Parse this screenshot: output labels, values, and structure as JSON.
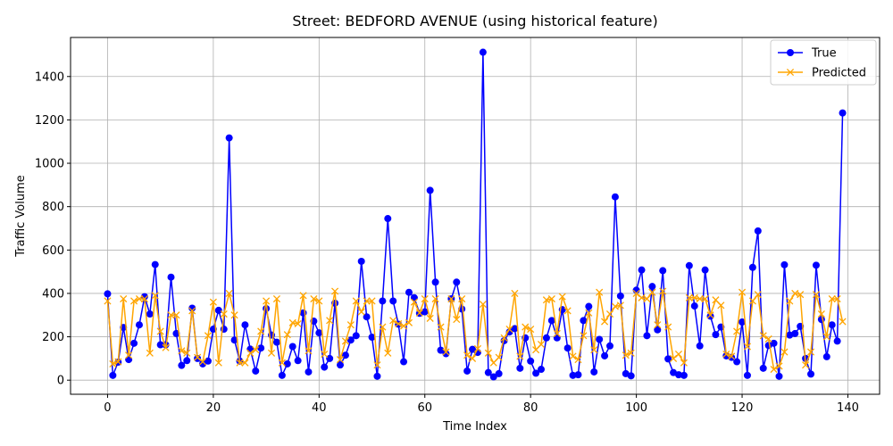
{
  "chart_data": {
    "type": "line",
    "title": "Street: BEDFORD AVENUE (using historical feature)",
    "xlabel": "Time Index",
    "ylabel": "Traffic Volume",
    "xlim": [
      -7,
      146
    ],
    "ylim": [
      -65,
      1580
    ],
    "xticks": [
      0,
      20,
      40,
      60,
      80,
      100,
      120,
      140
    ],
    "yticks": [
      0,
      200,
      400,
      600,
      800,
      1000,
      1200,
      1400
    ],
    "grid": true,
    "legend_position": "top-right",
    "series": [
      {
        "name": "True",
        "color": "#0000ff",
        "marker": "circle",
        "values": [
          398,
          22,
          83,
          243,
          95,
          170,
          255,
          385,
          305,
          533,
          163,
          163,
          475,
          215,
          68,
          90,
          332,
          100,
          75,
          88,
          235,
          322,
          235,
          1117,
          185,
          88,
          255,
          143,
          42,
          148,
          330,
          208,
          175,
          22,
          75,
          155,
          90,
          310,
          38,
          272,
          218,
          60,
          100,
          355,
          70,
          115,
          185,
          205,
          548,
          292,
          198,
          18,
          365,
          745,
          365,
          258,
          85,
          405,
          380,
          308,
          315,
          875,
          452,
          138,
          122,
          375,
          452,
          328,
          42,
          142,
          128,
          1512,
          35,
          15,
          30,
          182,
          222,
          238,
          55,
          195,
          88,
          32,
          50,
          195,
          275,
          195,
          325,
          148,
          22,
          25,
          275,
          340,
          38,
          188,
          112,
          158,
          845,
          388,
          30,
          20,
          415,
          508,
          205,
          432,
          232,
          505,
          98,
          35,
          25,
          22,
          528,
          342,
          158,
          508,
          295,
          210,
          245,
          112,
          105,
          85,
          268,
          22,
          520,
          688,
          55,
          160,
          170,
          18,
          532,
          208,
          215,
          248,
          100,
          28,
          530,
          280,
          108,
          255,
          180,
          1232
        ]
      },
      {
        "name": "Predicted",
        "color": "#ffa500",
        "marker": "x",
        "values": [
          365,
          75,
          85,
          375,
          115,
          365,
          375,
          375,
          125,
          390,
          225,
          150,
          300,
          300,
          135,
          125,
          320,
          105,
          85,
          205,
          360,
          80,
          305,
          400,
          300,
          80,
          80,
          125,
          140,
          225,
          365,
          125,
          375,
          80,
          210,
          265,
          260,
          390,
          135,
          375,
          365,
          120,
          275,
          410,
          95,
          180,
          255,
          365,
          315,
          365,
          365,
          70,
          245,
          125,
          275,
          260,
          250,
          265,
          360,
          310,
          375,
          285,
          375,
          245,
          130,
          375,
          280,
          375,
          115,
          100,
          145,
          350,
          125,
          80,
          105,
          195,
          235,
          400,
          110,
          245,
          235,
          140,
          165,
          370,
          375,
          215,
          385,
          320,
          110,
          95,
          205,
          310,
          140,
          405,
          270,
          305,
          340,
          345,
          115,
          125,
          400,
          380,
          375,
          405,
          255,
          410,
          245,
          100,
          120,
          80,
          380,
          380,
          375,
          375,
          300,
          370,
          345,
          120,
          110,
          225,
          405,
          155,
          365,
          395,
          205,
          190,
          50,
          65,
          130,
          365,
          400,
          395,
          70,
          130,
          395,
          305,
          200,
          375,
          375,
          270
        ]
      }
    ]
  }
}
